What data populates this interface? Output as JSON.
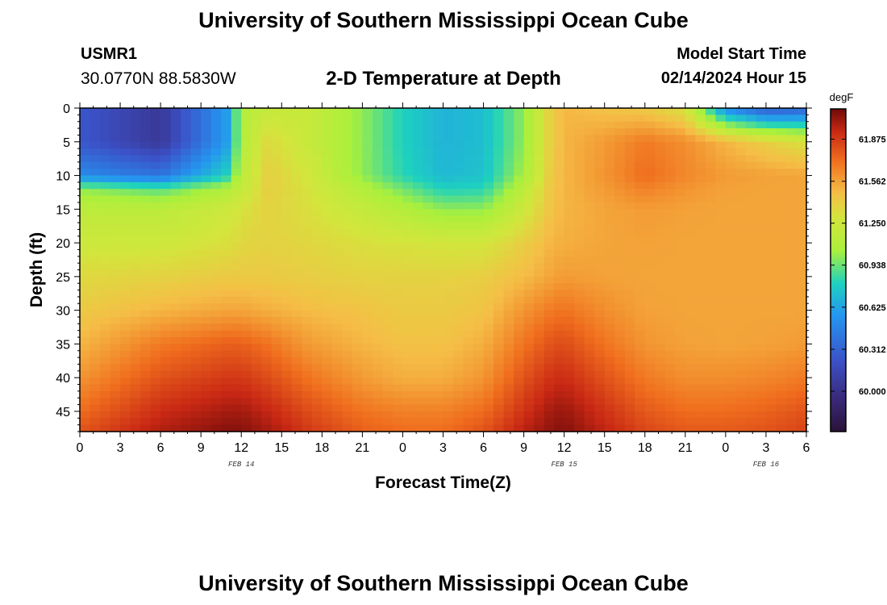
{
  "header": {
    "title": "University of Southern Mississippi Ocean Cube",
    "station": "USMR1",
    "latlon": "30.0770N  88.5830W",
    "subtitle": "2-D Temperature at Depth",
    "model_start_label": "Model Start Time",
    "model_start_date": "02/14/2024 Hour 15"
  },
  "footer": {
    "title": "University of Southern Mississippi Ocean Cube"
  },
  "chart_data": {
    "type": "heatmap",
    "xlabel": "Forecast Time(Z)",
    "ylabel": "Depth (ft)",
    "xlim": [
      0,
      54
    ],
    "ylim": [
      0,
      48
    ],
    "x_ticks": [
      0,
      3,
      6,
      9,
      12,
      15,
      18,
      21,
      24,
      27,
      30,
      33,
      36,
      39,
      42,
      45,
      48,
      51,
      54
    ],
    "x_tick_labels": [
      "0",
      "3",
      "6",
      "9",
      "12",
      "15",
      "18",
      "21",
      "0",
      "3",
      "6",
      "9",
      "12",
      "15",
      "18",
      "21",
      "0",
      "3",
      "6"
    ],
    "y_ticks": [
      0,
      5,
      10,
      15,
      20,
      25,
      30,
      35,
      40,
      45
    ],
    "y_tick_labels": [
      "0",
      "5",
      "10",
      "15",
      "20",
      "25",
      "30",
      "35",
      "40",
      "45"
    ],
    "date_labels": [
      {
        "x": 12,
        "text": "FEB 14"
      },
      {
        "x": 36,
        "text": "FEB 15"
      },
      {
        "x": 51,
        "text": "FEB 16"
      }
    ],
    "colorbar": {
      "unit": "degF",
      "min": 59.7,
      "max": 62.1,
      "ticks": [
        60.0,
        60.312,
        60.625,
        60.938,
        61.25,
        61.562,
        61.875
      ],
      "tick_labels": [
        "60.000",
        "60.312",
        "60.625",
        "60.938",
        "61.250",
        "61.562",
        "61.875"
      ]
    },
    "depths": [
      0,
      5,
      10,
      12,
      15,
      20,
      25,
      30,
      35,
      40,
      45,
      48
    ],
    "times": [
      0,
      6,
      11,
      12,
      14,
      17,
      21,
      24,
      27,
      30,
      33,
      35,
      36,
      39,
      42,
      45,
      48,
      51,
      54
    ],
    "values": [
      [
        60.25,
        60.05,
        60.6,
        61.1,
        61.2,
        61.22,
        61.0,
        60.8,
        60.68,
        60.72,
        61.0,
        61.4,
        61.5,
        61.45,
        61.42,
        61.3,
        60.5,
        60.25,
        60.3
      ],
      [
        60.25,
        60.05,
        60.6,
        61.1,
        61.35,
        61.22,
        61.0,
        60.8,
        60.68,
        60.72,
        61.0,
        61.4,
        61.5,
        61.58,
        61.68,
        61.62,
        61.5,
        61.4,
        61.3
      ],
      [
        60.5,
        60.4,
        60.8,
        61.15,
        61.4,
        61.28,
        61.0,
        60.82,
        60.7,
        60.74,
        61.05,
        61.42,
        61.5,
        61.6,
        61.72,
        61.64,
        61.58,
        61.56,
        61.55
      ],
      [
        61.0,
        60.9,
        61.1,
        61.2,
        61.4,
        61.3,
        61.1,
        60.95,
        60.8,
        60.82,
        61.15,
        61.44,
        61.5,
        61.58,
        61.66,
        61.6,
        61.56,
        61.55,
        61.55
      ],
      [
        61.15,
        61.15,
        61.25,
        61.3,
        61.38,
        61.32,
        61.2,
        61.1,
        61.0,
        61.0,
        61.25,
        61.45,
        61.5,
        61.55,
        61.58,
        61.56,
        61.55,
        61.55,
        61.55
      ],
      [
        61.25,
        61.25,
        61.32,
        61.36,
        61.38,
        61.36,
        61.32,
        61.3,
        61.28,
        61.28,
        61.4,
        61.5,
        61.52,
        61.55,
        61.56,
        61.55,
        61.55,
        61.55,
        61.55
      ],
      [
        61.35,
        61.38,
        61.42,
        61.42,
        61.42,
        61.4,
        61.38,
        61.38,
        61.38,
        61.4,
        61.48,
        61.55,
        61.58,
        61.56,
        61.55,
        61.55,
        61.55,
        61.55,
        61.55
      ],
      [
        61.42,
        61.5,
        61.55,
        61.55,
        61.52,
        61.48,
        61.45,
        61.42,
        61.42,
        61.45,
        61.6,
        61.68,
        61.7,
        61.62,
        61.56,
        61.55,
        61.55,
        61.55,
        61.55
      ],
      [
        61.5,
        61.68,
        61.76,
        61.76,
        61.7,
        61.58,
        61.5,
        61.46,
        61.46,
        61.52,
        61.7,
        61.8,
        61.82,
        61.7,
        61.6,
        61.56,
        61.55,
        61.56,
        61.58
      ],
      [
        61.6,
        61.8,
        61.88,
        61.88,
        61.82,
        61.7,
        61.58,
        61.52,
        61.52,
        61.6,
        61.8,
        61.9,
        61.92,
        61.8,
        61.68,
        61.62,
        61.62,
        61.64,
        61.68
      ],
      [
        61.72,
        61.92,
        62.0,
        62.0,
        61.94,
        61.82,
        61.7,
        61.66,
        61.66,
        61.72,
        61.9,
        62.0,
        62.02,
        61.9,
        61.78,
        61.72,
        61.72,
        61.75,
        61.8
      ],
      [
        61.8,
        61.98,
        62.06,
        62.06,
        62.0,
        61.88,
        61.76,
        61.72,
        61.72,
        61.8,
        61.96,
        62.04,
        62.06,
        61.95,
        61.84,
        61.78,
        61.78,
        61.8,
        61.85
      ]
    ]
  }
}
